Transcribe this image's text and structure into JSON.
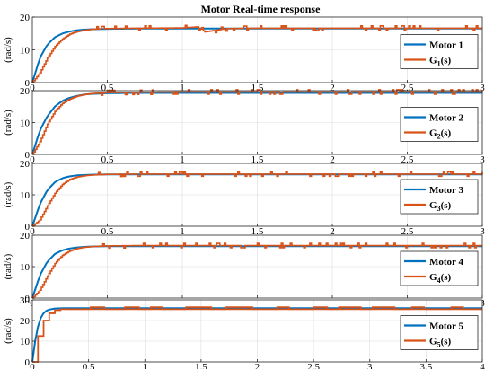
{
  "chart_data": [
    {
      "type": "line",
      "title": "Motor Real-time response",
      "xlabel": "",
      "ylabel": "(rad/s)",
      "xlim": [
        0,
        3
      ],
      "ylim": [
        0,
        20
      ],
      "xticks": [
        0,
        0.5,
        1,
        1.5,
        2,
        2.5,
        3
      ],
      "xtick_labels": [
        "0",
        "0.5",
        "1",
        "1.5",
        "2",
        "2.5",
        "3"
      ],
      "yticks": [
        0,
        10,
        20
      ],
      "ytick_labels": [
        "0",
        "10",
        "20"
      ],
      "grid": true,
      "legend_position": "right",
      "series": [
        {
          "name": "Motor 1",
          "color": "#0072BD",
          "style": "smooth",
          "x": [
            0,
            0.05,
            0.1,
            0.15,
            0.2,
            0.25,
            0.3,
            0.35,
            0.4,
            0.5,
            0.7,
            1.0,
            1.5,
            2.0,
            2.5,
            3.0
          ],
          "y": [
            0,
            7.5,
            11.6,
            13.8,
            15.0,
            15.6,
            16.0,
            16.2,
            16.3,
            16.4,
            16.5,
            16.5,
            16.5,
            16.5,
            16.5,
            16.5
          ]
        },
        {
          "name": "G",
          "sub": "1",
          "suffix": "(s)",
          "color": "#D95319",
          "style": "noisy",
          "x": [
            0,
            0.05,
            0.1,
            0.15,
            0.2,
            0.25,
            0.3,
            0.35,
            0.4,
            0.5,
            0.7,
            1.0,
            1.1,
            1.15,
            1.3,
            1.5,
            2.0,
            2.5,
            3.0
          ],
          "y": [
            0,
            3.0,
            7.5,
            11.0,
            13.3,
            14.8,
            15.6,
            16.0,
            16.3,
            16.5,
            16.6,
            16.7,
            17.0,
            15.5,
            16.5,
            16.6,
            16.6,
            16.6,
            16.6
          ]
        }
      ]
    },
    {
      "type": "line",
      "title": "",
      "xlabel": "",
      "ylabel": "(rad/s)",
      "xlim": [
        0,
        3
      ],
      "ylim": [
        0,
        20
      ],
      "xticks": [
        0,
        0.5,
        1,
        1.5,
        2,
        2.5,
        3
      ],
      "xtick_labels": [
        "0",
        "0.5",
        "1",
        "1.5",
        "2",
        "2.5",
        "3"
      ],
      "yticks": [
        0,
        10,
        20
      ],
      "ytick_labels": [
        "0",
        "10",
        "20"
      ],
      "grid": true,
      "legend_position": "right",
      "series": [
        {
          "name": "Motor 2",
          "color": "#0072BD",
          "style": "smooth",
          "x": [
            0,
            0.05,
            0.1,
            0.15,
            0.2,
            0.25,
            0.3,
            0.35,
            0.4,
            0.5,
            0.7,
            1.0,
            1.5,
            2.0,
            2.5,
            3.0
          ],
          "y": [
            0,
            7.5,
            12.0,
            15.0,
            16.8,
            17.8,
            18.4,
            18.8,
            19.0,
            19.2,
            19.3,
            19.3,
            19.3,
            19.3,
            19.3,
            19.3
          ]
        },
        {
          "name": "G",
          "sub": "2",
          "suffix": "(s)",
          "color": "#D95319",
          "style": "noisy",
          "x": [
            0,
            0.05,
            0.1,
            0.15,
            0.2,
            0.25,
            0.3,
            0.35,
            0.4,
            0.5,
            0.7,
            1.0,
            1.5,
            2.0,
            2.5,
            3.0
          ],
          "y": [
            0,
            4.0,
            9.5,
            13.5,
            16.0,
            17.4,
            18.3,
            18.8,
            19.1,
            19.4,
            19.5,
            19.6,
            19.6,
            19.6,
            19.6,
            19.6
          ]
        }
      ]
    },
    {
      "type": "line",
      "title": "",
      "xlabel": "",
      "ylabel": "(rad/s)",
      "xlim": [
        0,
        3
      ],
      "ylim": [
        0,
        20
      ],
      "xticks": [
        0,
        0.5,
        1,
        1.5,
        2,
        2.5,
        3
      ],
      "xtick_labels": [
        "0",
        "0.5",
        "1",
        "1.5",
        "2",
        "2.5",
        "3"
      ],
      "yticks": [
        0,
        10,
        20
      ],
      "ytick_labels": [
        "0",
        "10",
        "20"
      ],
      "grid": true,
      "legend_position": "right",
      "series": [
        {
          "name": "Motor 3",
          "color": "#0072BD",
          "style": "smooth",
          "x": [
            0,
            0.05,
            0.1,
            0.15,
            0.2,
            0.25,
            0.3,
            0.35,
            0.4,
            0.5,
            0.7,
            1.0,
            1.5,
            2.0,
            2.5,
            3.0
          ],
          "y": [
            0,
            7.0,
            11.5,
            14.0,
            15.3,
            15.9,
            16.2,
            16.3,
            16.4,
            16.5,
            16.5,
            16.5,
            16.5,
            16.5,
            16.5,
            16.5
          ]
        },
        {
          "name": "G",
          "sub": "3",
          "suffix": "(s)",
          "color": "#D95319",
          "style": "noisy",
          "x": [
            0,
            0.05,
            0.1,
            0.15,
            0.2,
            0.25,
            0.3,
            0.35,
            0.4,
            0.5,
            0.7,
            1.0,
            1.5,
            2.0,
            2.5,
            3.0
          ],
          "y": [
            0,
            2.0,
            6.5,
            10.5,
            13.3,
            14.9,
            15.7,
            16.1,
            16.3,
            16.5,
            16.6,
            16.6,
            16.6,
            16.6,
            16.6,
            16.6
          ]
        }
      ]
    },
    {
      "type": "line",
      "title": "",
      "xlabel": "",
      "ylabel": "(rad/s)",
      "xlim": [
        0,
        3
      ],
      "ylim": [
        0,
        20
      ],
      "xticks": [
        0,
        0.5,
        1,
        1.5,
        2,
        2.5,
        3
      ],
      "xtick_labels": [
        "0",
        "0.5",
        "1",
        "1.5",
        "2",
        "2.5",
        "3"
      ],
      "yticks": [
        0,
        10,
        20
      ],
      "ytick_labels": [
        "0",
        "10",
        "20"
      ],
      "grid": true,
      "legend_position": "right",
      "series": [
        {
          "name": "Motor 4",
          "color": "#0072BD",
          "style": "smooth",
          "x": [
            0,
            0.05,
            0.1,
            0.15,
            0.2,
            0.25,
            0.3,
            0.35,
            0.4,
            0.5,
            0.7,
            1.0,
            1.5,
            2.0,
            2.5,
            3.0
          ],
          "y": [
            0,
            7.2,
            11.6,
            14.0,
            15.2,
            15.8,
            16.1,
            16.3,
            16.4,
            16.5,
            16.5,
            16.5,
            16.5,
            16.5,
            16.5,
            16.5
          ]
        },
        {
          "name": "G",
          "sub": "4",
          "suffix": "(s)",
          "color": "#D95319",
          "style": "noisy",
          "x": [
            0,
            0.05,
            0.1,
            0.15,
            0.2,
            0.25,
            0.3,
            0.35,
            0.4,
            0.5,
            0.7,
            1.0,
            1.5,
            2.0,
            2.5,
            3.0
          ],
          "y": [
            0,
            2.5,
            7.0,
            11.0,
            13.6,
            15.0,
            15.8,
            16.2,
            16.4,
            16.6,
            16.7,
            16.7,
            16.7,
            16.7,
            16.7,
            16.7
          ]
        }
      ]
    },
    {
      "type": "line",
      "title": "",
      "xlabel": "",
      "ylabel": "(rad/s)",
      "xlim": [
        0,
        4
      ],
      "ylim": [
        0,
        30
      ],
      "xticks": [
        0,
        0.5,
        1,
        1.5,
        2,
        2.5,
        3,
        3.5,
        4
      ],
      "xtick_labels": [
        "0",
        "0.5",
        "1",
        "1.5",
        "2",
        "2.5",
        "3",
        "3.5",
        "4"
      ],
      "yticks": [
        0,
        10,
        20,
        30
      ],
      "ytick_labels": [
        "0",
        "10",
        "20",
        "30"
      ],
      "grid": true,
      "legend_position": "right",
      "series": [
        {
          "name": "Motor 5",
          "color": "#0072BD",
          "style": "smooth",
          "x": [
            0,
            0.03,
            0.06,
            0.09,
            0.12,
            0.15,
            0.2,
            0.3,
            0.5,
            1.0,
            2.0,
            3.0,
            4.0
          ],
          "y": [
            0,
            12.0,
            19.5,
            23.0,
            24.6,
            25.3,
            25.8,
            26.0,
            26.0,
            26.0,
            26.0,
            26.0,
            26.0
          ]
        },
        {
          "name": "G",
          "sub": "5",
          "suffix": "(s)",
          "color": "#D95319",
          "style": "step",
          "x": [
            0,
            0.05,
            0.05,
            0.1,
            0.1,
            0.15,
            0.15,
            0.2,
            0.2,
            0.25,
            0.25,
            4.0
          ],
          "y": [
            0,
            0,
            12.5,
            12.5,
            20.0,
            20.0,
            23.5,
            23.5,
            25.0,
            25.0,
            25.5,
            25.5
          ]
        }
      ]
    }
  ]
}
